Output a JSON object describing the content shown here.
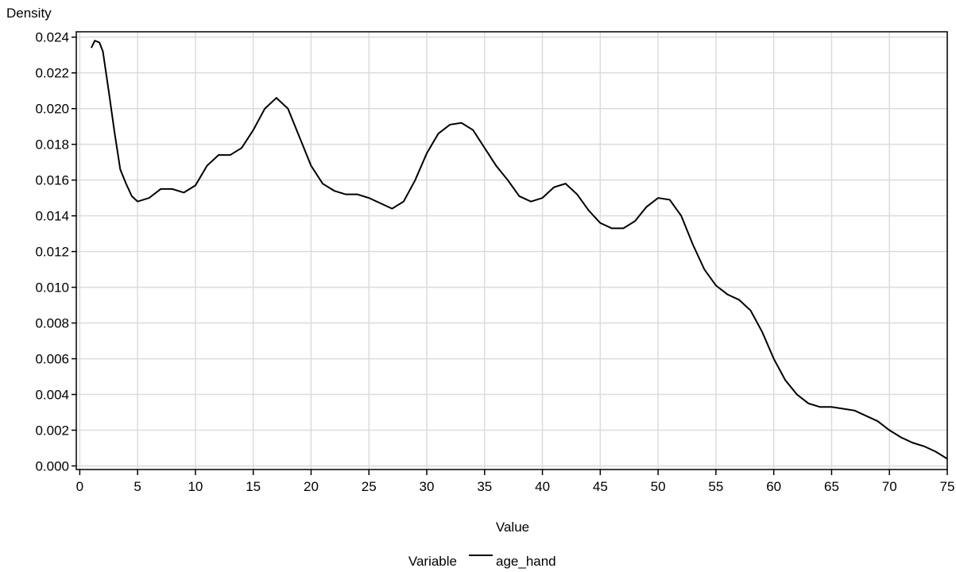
{
  "chart_data": {
    "type": "line",
    "y_label": "Density",
    "x_label": "Value",
    "legend_title": "Variable",
    "grid": true,
    "xlim": [
      -0.3,
      75
    ],
    "ylim": [
      -0.0002,
      0.0243
    ],
    "xticks": [
      0,
      5,
      10,
      15,
      20,
      25,
      30,
      35,
      40,
      45,
      50,
      55,
      60,
      65,
      70,
      75
    ],
    "yticks": [
      {
        "value": 0,
        "label": "0.000"
      },
      0.002,
      0.004,
      0.006,
      0.008,
      {
        "value": 0.01,
        "label": "0.010"
      },
      0.012,
      0.014,
      0.016,
      0.018,
      {
        "value": 0.02,
        "label": "0.020"
      },
      0.022,
      0.024
    ],
    "x": [
      1,
      1.3,
      1.7,
      2,
      2.5,
      3,
      3.5,
      4,
      4.5,
      5,
      6,
      7,
      8,
      9,
      10,
      11,
      12,
      13,
      14,
      15,
      16,
      17,
      18,
      19,
      20,
      21,
      22,
      23,
      24,
      25,
      26,
      27,
      28,
      29,
      30,
      31,
      32,
      33,
      34,
      35,
      36,
      37,
      38,
      39,
      40,
      41,
      42,
      43,
      44,
      45,
      46,
      47,
      48,
      49,
      50,
      51,
      52,
      53,
      54,
      55,
      56,
      57,
      58,
      59,
      60,
      61,
      62,
      63,
      64,
      65,
      66,
      67,
      68,
      69,
      70,
      71,
      72,
      73,
      74,
      75
    ],
    "series": [
      {
        "name": "age_hand",
        "color": "#000000",
        "values": [
          0.0234,
          0.0238,
          0.0237,
          0.0232,
          0.021,
          0.0187,
          0.0166,
          0.0158,
          0.0151,
          0.0148,
          0.015,
          0.0155,
          0.0155,
          0.0153,
          0.0157,
          0.0168,
          0.0174,
          0.0174,
          0.0178,
          0.0188,
          0.02,
          0.0206,
          0.02,
          0.0184,
          0.0168,
          0.0158,
          0.0154,
          0.0152,
          0.0152,
          0.015,
          0.0147,
          0.0144,
          0.0148,
          0.016,
          0.0175,
          0.0186,
          0.0191,
          0.0192,
          0.0188,
          0.0178,
          0.0168,
          0.016,
          0.0151,
          0.0148,
          0.015,
          0.0156,
          0.0158,
          0.0152,
          0.0143,
          0.0136,
          0.0133,
          0.0133,
          0.0137,
          0.0145,
          0.015,
          0.0149,
          0.014,
          0.0124,
          0.011,
          0.0101,
          0.0096,
          0.0093,
          0.0087,
          0.0075,
          0.006,
          0.0048,
          0.004,
          0.0035,
          0.0033,
          0.0033,
          0.0032,
          0.0031,
          0.0028,
          0.0025,
          0.002,
          0.0016,
          0.0013,
          0.0011,
          0.0008,
          0.0004
        ]
      }
    ]
  }
}
